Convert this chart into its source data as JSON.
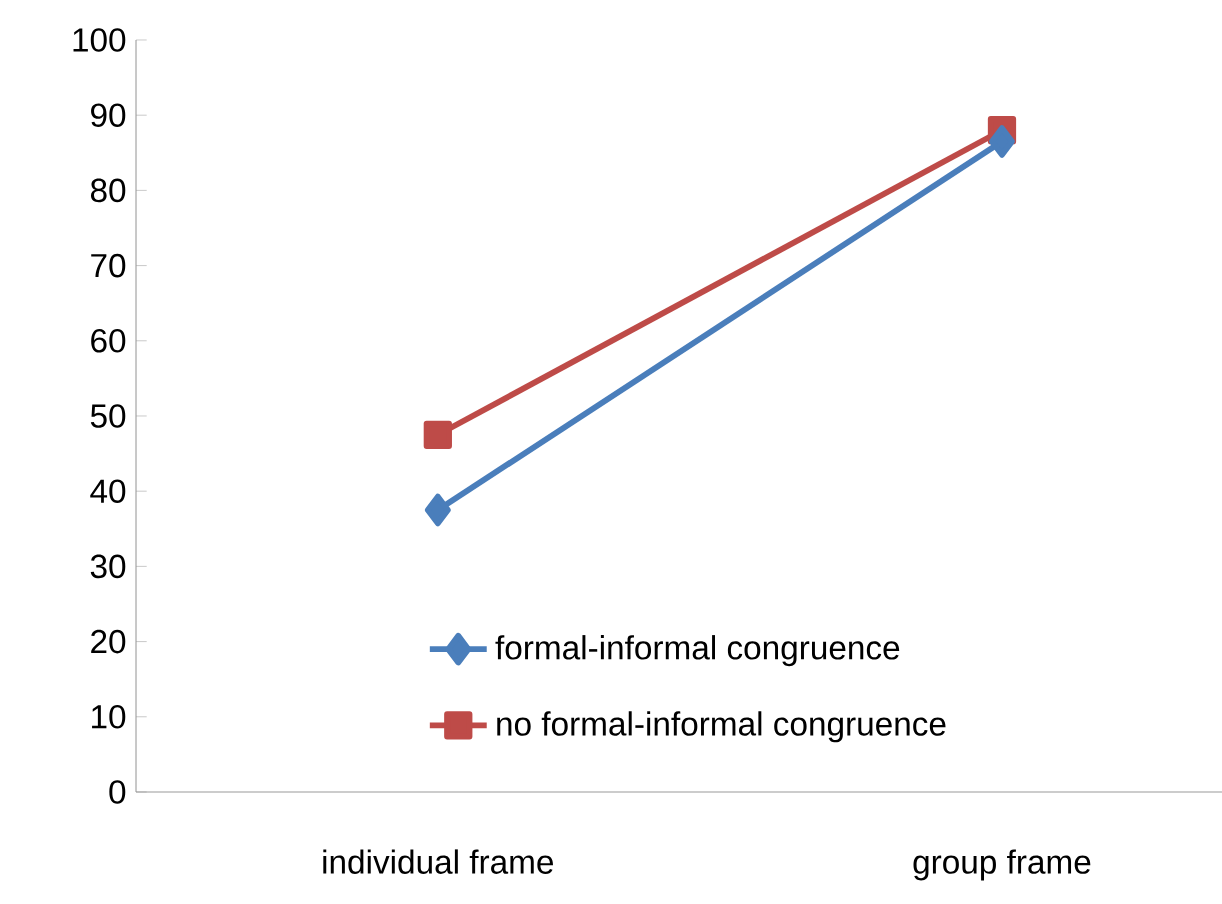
{
  "chart_data": {
    "type": "line",
    "categories": [
      "individual frame",
      "group frame"
    ],
    "series": [
      {
        "name": "formal-informal congruence",
        "color": "#4a7ebb",
        "marker": "diamond",
        "values": [
          37.5,
          86.5
        ]
      },
      {
        "name": "no formal-informal congruence",
        "color": "#be4b48",
        "marker": "square",
        "values": [
          47.5,
          88
        ]
      }
    ],
    "ylim": [
      0,
      100
    ],
    "yticks": [
      0,
      10,
      20,
      30,
      40,
      50,
      60,
      70,
      80,
      90,
      100
    ],
    "legend": "bottom right",
    "grid": false,
    "line_style": "solid"
  }
}
